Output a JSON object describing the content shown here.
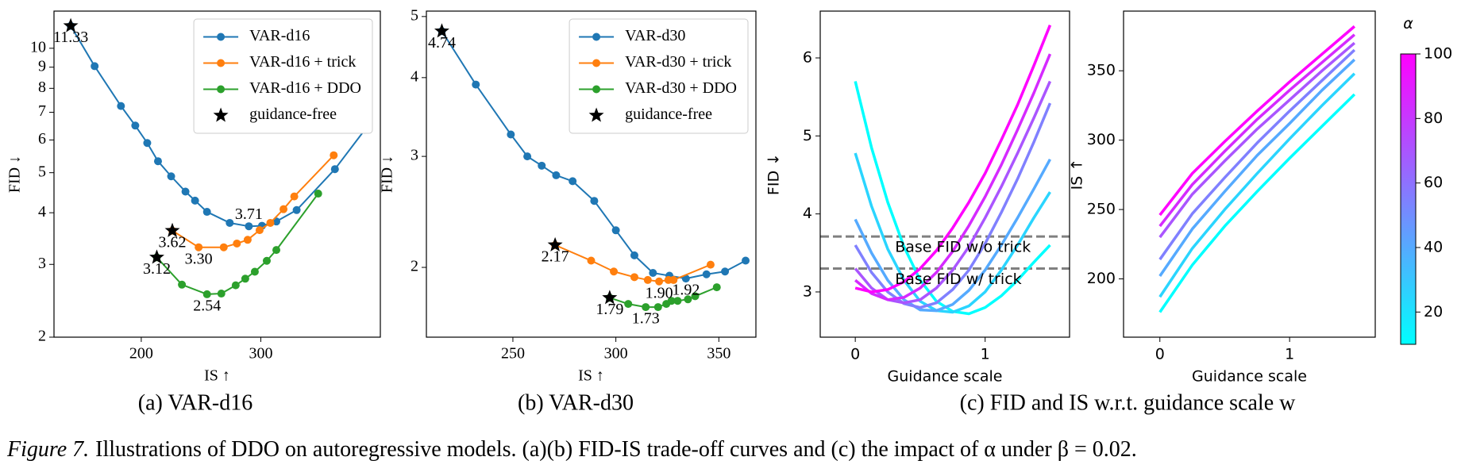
{
  "chart_data": [
    {
      "type": "line",
      "xlabel": "IS ↑",
      "ylabel": "FID ↓",
      "yscale": "log",
      "xlim": [
        127,
        400
      ],
      "ylim": [
        2,
        12.3
      ],
      "xticks": [
        200,
        300
      ],
      "yticks": [
        2,
        3,
        4,
        5,
        6,
        7,
        8,
        9,
        10
      ],
      "legend": "upper right",
      "series": [
        {
          "name": "VAR-d16",
          "color": "#1f77b4",
          "marker": "o",
          "x": [
            141,
            161,
            183,
            195,
            205,
            214,
            225,
            237,
            245,
            255,
            274,
            290,
            301,
            313,
            330,
            362,
            387
          ],
          "values": [
            11.33,
            9.05,
            7.25,
            6.5,
            5.9,
            5.33,
            4.9,
            4.5,
            4.28,
            4.02,
            3.78,
            3.71,
            3.72,
            3.81,
            4.06,
            5.1,
            6.35
          ]
        },
        {
          "name": "VAR-d16 + trick",
          "color": "#ff7f0e",
          "marker": "o",
          "x": [
            226,
            248,
            269,
            280,
            289,
            299,
            308,
            319,
            328,
            361
          ],
          "values": [
            3.62,
            3.3,
            3.3,
            3.37,
            3.44,
            3.63,
            3.78,
            4.08,
            4.38,
            5.51
          ]
        },
        {
          "name": "VAR-d16 + DDO",
          "color": "#2ca02c",
          "marker": "o",
          "x": [
            213,
            234,
            255,
            267,
            279,
            287,
            295,
            305,
            313,
            348
          ],
          "values": [
            3.12,
            2.68,
            2.54,
            2.55,
            2.67,
            2.77,
            2.88,
            3.06,
            3.25,
            4.45
          ]
        },
        {
          "name": "guidance-free",
          "color": "#000000",
          "marker": "star",
          "linestyle": "none",
          "x": [
            141,
            226,
            213
          ],
          "values": [
            11.33,
            3.62,
            3.12
          ]
        }
      ],
      "annotations": [
        {
          "text": "11.33",
          "x": 141,
          "y": 11.33,
          "position": "below"
        },
        {
          "text": "3.62",
          "x": 226,
          "y": 3.62,
          "position": "below"
        },
        {
          "text": "3.12",
          "x": 213,
          "y": 3.12,
          "position": "below"
        },
        {
          "text": "3.71",
          "x": 290,
          "y": 3.71,
          "position": "above"
        },
        {
          "text": "3.30",
          "x": 248,
          "y": 3.3,
          "position": "below"
        },
        {
          "text": "2.54",
          "x": 255,
          "y": 2.54,
          "position": "below"
        }
      ]
    },
    {
      "type": "line",
      "xlabel": "IS ↑",
      "ylabel": "FID ↓",
      "yscale": "log",
      "xlim": [
        208,
        368
      ],
      "ylim": [
        1.55,
        5.1
      ],
      "xticks": [
        250,
        300,
        350
      ],
      "yticks": [
        2,
        3,
        4,
        5
      ],
      "legend": "upper right",
      "series": [
        {
          "name": "VAR-d30",
          "color": "#1f77b4",
          "marker": "o",
          "x": [
            215.5,
            232,
            249,
            257,
            264,
            271,
            279,
            289.5,
            300,
            309,
            318,
            326,
            334,
            344,
            353,
            363
          ],
          "values": [
            4.74,
            3.9,
            3.25,
            3.0,
            2.9,
            2.8,
            2.74,
            2.55,
            2.29,
            2.09,
            1.96,
            1.94,
            1.92,
            1.95,
            1.97,
            2.05
          ]
        },
        {
          "name": "VAR-d30 + trick",
          "color": "#ff7f0e",
          "marker": "o",
          "x": [
            270.5,
            288,
            299,
            309,
            315.5,
            321,
            325.5,
            328,
            346
          ],
          "values": [
            2.17,
            2.05,
            1.97,
            1.93,
            1.91,
            1.9,
            1.91,
            1.91,
            2.02
          ]
        },
        {
          "name": "VAR-d30 + DDO",
          "color": "#2ca02c",
          "marker": "o",
          "x": [
            297,
            306,
            314.5,
            320.5,
            324.5,
            327,
            330,
            335,
            338.5,
            349
          ],
          "values": [
            1.79,
            1.75,
            1.73,
            1.73,
            1.75,
            1.77,
            1.77,
            1.78,
            1.8,
            1.86
          ]
        },
        {
          "name": "guidance-free",
          "color": "#000000",
          "marker": "star",
          "linestyle": "none",
          "x": [
            215.5,
            270.5,
            297
          ],
          "values": [
            4.74,
            2.17,
            1.79
          ]
        }
      ],
      "annotations": [
        {
          "text": "4.74",
          "x": 215.5,
          "y": 4.74,
          "position": "below"
        },
        {
          "text": "2.17",
          "x": 270.5,
          "y": 2.17,
          "position": "below"
        },
        {
          "text": "1.79",
          "x": 297,
          "y": 1.79,
          "position": "below"
        },
        {
          "text": "1.90",
          "x": 321,
          "y": 1.9,
          "position": "below"
        },
        {
          "text": "1.92",
          "x": 334,
          "y": 1.92,
          "position": "below"
        },
        {
          "text": "1.73",
          "x": 314.5,
          "y": 1.73,
          "position": "below"
        }
      ]
    },
    {
      "type": "line",
      "xlabel": "Guidance scale",
      "ylabel": "FID ↓",
      "xlim": [
        -0.27,
        1.65
      ],
      "ylim": [
        2.42,
        6.6
      ],
      "xticks": [
        0,
        1
      ],
      "yticks": [
        3,
        4,
        5,
        6
      ],
      "x": [
        0,
        0.125,
        0.25,
        0.375,
        0.5,
        0.625,
        0.75,
        0.875,
        1,
        1.125,
        1.25,
        1.375,
        1.5
      ],
      "series": [
        {
          "color": "#00ffff",
          "values": [
            5.7,
            4.85,
            4.15,
            3.58,
            3.15,
            2.88,
            2.75,
            2.72,
            2.8,
            2.95,
            3.15,
            3.38,
            3.6
          ]
        },
        {
          "color": "#2ad5ff",
          "values": [
            4.78,
            4.1,
            3.55,
            3.15,
            2.88,
            2.76,
            2.74,
            2.82,
            3.0,
            3.28,
            3.6,
            3.95,
            4.28
          ]
        },
        {
          "color": "#55aaff",
          "values": [
            3.93,
            3.5,
            3.15,
            2.9,
            2.77,
            2.76,
            2.84,
            3.02,
            3.28,
            3.6,
            3.95,
            4.32,
            4.7
          ]
        },
        {
          "color": "#8080ff",
          "values": [
            3.6,
            3.25,
            3.0,
            2.85,
            2.8,
            2.86,
            3.03,
            3.28,
            3.62,
            4.02,
            4.45,
            4.92,
            5.42
          ]
        },
        {
          "color": "#aa55ff",
          "values": [
            3.3,
            3.05,
            2.9,
            2.86,
            2.9,
            3.05,
            3.28,
            3.58,
            3.95,
            4.35,
            4.78,
            5.23,
            5.7
          ]
        },
        {
          "color": "#d52aff",
          "values": [
            3.15,
            2.98,
            2.9,
            2.93,
            3.05,
            3.25,
            3.52,
            3.85,
            4.22,
            4.63,
            5.08,
            5.55,
            6.05
          ]
        },
        {
          "color": "#ff00ff",
          "values": [
            3.05,
            3.0,
            3.03,
            3.13,
            3.3,
            3.53,
            3.82,
            4.15,
            4.52,
            4.95,
            5.4,
            5.9,
            6.42
          ]
        }
      ],
      "reference_lines": [
        {
          "y": 3.71,
          "label": "Base FID w/o trick",
          "color": "#808080",
          "label_color": "#ff0000",
          "style": "dashed"
        },
        {
          "y": 3.3,
          "label": "Base FID w/ trick",
          "color": "#808080",
          "label_color": "#ff0000",
          "style": "dashed"
        }
      ]
    },
    {
      "type": "line",
      "xlabel": "Guidance scale",
      "ylabel": "IS ↑",
      "xlim": [
        -0.28,
        1.66
      ],
      "ylim": [
        158,
        393
      ],
      "xticks": [
        0,
        1
      ],
      "yticks": [
        200,
        250,
        300,
        350
      ],
      "x": [
        0,
        0.25,
        0.5,
        0.75,
        1,
        1.25,
        1.5
      ],
      "series": [
        {
          "color": "#00ffff",
          "values": [
            176,
            210,
            238,
            263,
            287,
            310,
            333
          ]
        },
        {
          "color": "#2ad5ff",
          "values": [
            187,
            222,
            250,
            276,
            301,
            325,
            348
          ]
        },
        {
          "color": "#55aaff",
          "values": [
            202,
            236,
            263,
            289,
            312,
            336,
            358
          ]
        },
        {
          "color": "#8080ff",
          "values": [
            214,
            247,
            273,
            298,
            321,
            343,
            365
          ]
        },
        {
          "color": "#aa55ff",
          "values": [
            230,
            261,
            285,
            308,
            329,
            350,
            370
          ]
        },
        {
          "color": "#d52aff",
          "values": [
            238,
            268,
            292,
            315,
            336,
            356,
            376
          ]
        },
        {
          "color": "#ff00ff",
          "values": [
            246,
            276,
            299,
            321,
            342,
            362,
            382
          ]
        }
      ],
      "colorbar": {
        "label": "α",
        "lim": [
          10,
          100
        ],
        "ticks": [
          20,
          40,
          60,
          80,
          100
        ],
        "colors": [
          "#00ffff",
          "#ff00ff"
        ]
      }
    }
  ],
  "subcaptions": [
    "(a) VAR-d16",
    "(b) VAR-d30",
    "(c) FID and IS w.r.t. guidance scale w"
  ],
  "figure_caption": {
    "label": "Figure 7.",
    "text": "Illustrations of DDO on autoregressive models. (a)(b) FID-IS trade-off curves and (c) the impact of α under β = 0.02."
  }
}
